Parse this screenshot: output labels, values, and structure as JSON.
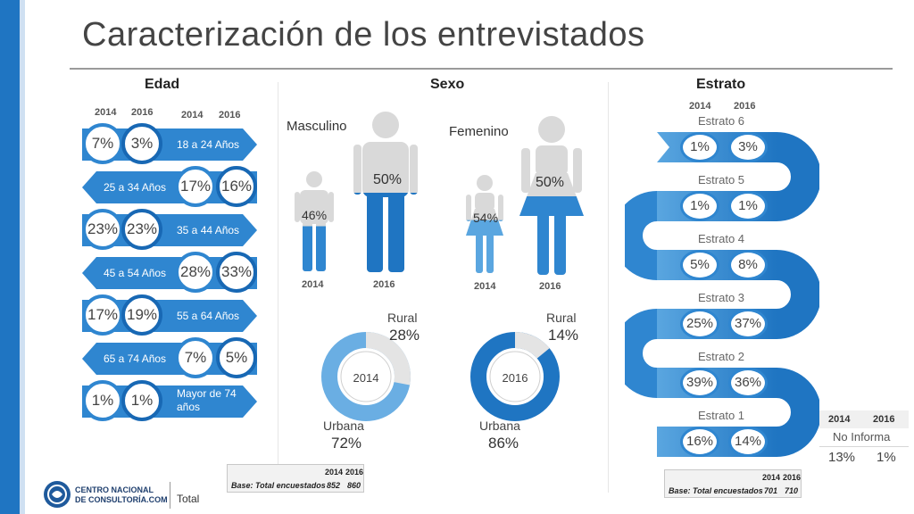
{
  "title": "Caracterización de los entrevistados",
  "colors": {
    "primary": "#2f86d0",
    "dark": "#1868b4",
    "light": "#8fc1ea",
    "bar": "#1f75c2"
  },
  "edad": {
    "title": "Edad",
    "year_headers": [
      "2014",
      "2016",
      "2014",
      "2016"
    ],
    "rows": [
      {
        "label": "18 a 24 Años",
        "v2014": "7%",
        "v2016": "3%"
      },
      {
        "label": "25 a 34 Años",
        "v2014": "17%",
        "v2016": "16%"
      },
      {
        "label": "35 a 44 Años",
        "v2014": "23%",
        "v2016": "23%"
      },
      {
        "label": "45 a 54 Años",
        "v2014": "28%",
        "v2016": "33%"
      },
      {
        "label": "55 a 64 Años",
        "v2014": "17%",
        "v2016": "19%"
      },
      {
        "label": "65 a 74 Años",
        "v2014": "7%",
        "v2016": "5%"
      },
      {
        "label": "Mayor de 74 años",
        "v2014": "1%",
        "v2016": "1%"
      }
    ]
  },
  "sexo": {
    "title": "Sexo",
    "masculino": {
      "label": "Masculino",
      "v2014": "46%",
      "v2016": "50%",
      "y2014": "2014",
      "y2016": "2016",
      "fill2014": 0.46,
      "fill2016": 0.5
    },
    "femenino": {
      "label": "Femenino",
      "v2014": "54%",
      "v2016": "50%",
      "y2014": "2014",
      "y2016": "2016",
      "fill2014": 0.54,
      "fill2016": 0.5
    },
    "donut_2014": {
      "year": "2014",
      "rural_label": "Rural",
      "rural": "28%",
      "urbana_label": "Urbana",
      "urbana": "72%",
      "rural_fraction": 0.28
    },
    "donut_2016": {
      "year": "2016",
      "rural_label": "Rural",
      "rural": "14%",
      "urbana_label": "Urbana",
      "urbana": "86%",
      "rural_fraction": 0.14
    },
    "base": {
      "y1": "2014",
      "y2": "2016",
      "label": "Base: Total encuestados",
      "v1": "852",
      "v2": "860"
    }
  },
  "estrato": {
    "title": "Estrato",
    "year_headers": [
      "2014",
      "2016"
    ],
    "rows": [
      {
        "name": "Estrato 6",
        "v2014": "1%",
        "v2016": "3%"
      },
      {
        "name": "Estrato 5",
        "v2014": "1%",
        "v2016": "1%"
      },
      {
        "name": "Estrato 4",
        "v2014": "5%",
        "v2016": "8%"
      },
      {
        "name": "Estrato 3",
        "v2014": "25%",
        "v2016": "37%"
      },
      {
        "name": "Estrato 2",
        "v2014": "39%",
        "v2016": "36%"
      },
      {
        "name": "Estrato 1",
        "v2014": "16%",
        "v2016": "14%"
      }
    ],
    "no_informa": {
      "y1": "2014",
      "y2": "2016",
      "label": "No Informa",
      "v1": "13%",
      "v2": "1%"
    },
    "base": {
      "y1": "2014",
      "y2": "2016",
      "label": "Base: Total encuestados",
      "v1": "701",
      "v2": "710"
    }
  },
  "footer": {
    "logo_line1": "CENTRO NACIONAL",
    "logo_line2": "DE CONSULTORÍA.COM",
    "total": "Total"
  }
}
